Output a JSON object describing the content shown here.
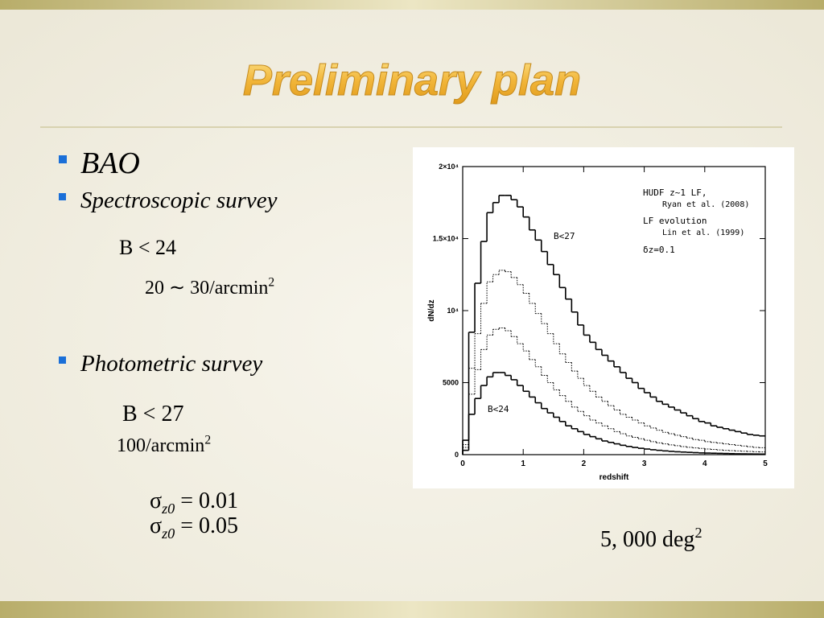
{
  "title": "Preliminary plan",
  "bullets": [
    "BAO",
    "Spectroscopic survey",
    "Photometric survey"
  ],
  "equations": [
    {
      "pre": "B < 24"
    },
    {
      "pre": "20 ∼ 30/arcmin",
      "sup": "2"
    },
    {
      "pre": "B < 27"
    },
    {
      "pre": "100/arcmin",
      "sup": "2"
    },
    {
      "pre": "σ",
      "sub": "z0",
      "post": " = 0.01"
    },
    {
      "pre": "σ",
      "sub": "z0",
      "post": " = 0.05"
    },
    {
      "pre": "5, 000 deg",
      "sup": "2"
    }
  ],
  "chart_data": {
    "type": "histogram",
    "x_label": "redshift",
    "y_label": "dN/dz",
    "annotations": [
      "HUDF z~1 LF,",
      "Ryan et al. (2008)",
      "LF evolution",
      "Lin et al. (1999)",
      "δz=0.1",
      "B<27",
      "B<24"
    ],
    "bins": [
      0,
      0.1,
      0.2,
      0.3,
      0.4,
      0.5,
      0.6,
      0.7,
      0.8,
      0.9,
      1,
      1.1,
      1.2,
      1.3,
      1.4,
      1.5,
      1.6,
      1.7,
      1.8,
      1.9,
      2,
      2.1,
      2.2,
      2.3,
      2.4,
      2.5,
      2.6,
      2.7,
      2.8,
      2.9,
      3,
      3.1,
      3.2,
      3.3,
      3.4,
      3.5,
      3.6,
      3.7,
      3.8,
      3.9,
      4,
      4.1,
      4.2,
      4.3,
      4.4,
      4.5,
      4.6,
      4.7,
      4.8,
      4.9,
      5
    ],
    "series": [
      {
        "color": "#000000",
        "line_style": "solid",
        "values": [
          1000,
          8500,
          11900,
          14800,
          16800,
          17500,
          18000,
          18000,
          17700,
          17200,
          16500,
          15600,
          14900,
          14100,
          13200,
          12500,
          11600,
          10800,
          9900,
          9000,
          8300,
          7800,
          7300,
          6900,
          6500,
          6100,
          5700,
          5300,
          5000,
          4600,
          4300,
          4000,
          3700,
          3500,
          3300,
          3100,
          2900,
          2700,
          2500,
          2300,
          2200,
          2000,
          1900,
          1800,
          1700,
          1600,
          1500,
          1400,
          1350,
          1300
        ]
      },
      {
        "color": "#000000",
        "line_style": "dotted",
        "values": [
          700,
          6000,
          8400,
          10500,
          12000,
          12500,
          12800,
          12700,
          12300,
          11800,
          11200,
          10500,
          9800,
          9100,
          8400,
          7700,
          7000,
          6400,
          5800,
          5300,
          4800,
          4400,
          4000,
          3700,
          3400,
          3100,
          2800,
          2600,
          2400,
          2200,
          2000,
          1850,
          1700,
          1550,
          1450,
          1350,
          1250,
          1150,
          1050,
          1000,
          900,
          850,
          800,
          750,
          700,
          650,
          600,
          550,
          500,
          480
        ]
      },
      {
        "color": "#000000",
        "line_style": "dotted",
        "values": [
          500,
          4200,
          5900,
          7300,
          8300,
          8700,
          8800,
          8600,
          8200,
          7700,
          7200,
          6600,
          6100,
          5500,
          5000,
          4500,
          4100,
          3700,
          3300,
          3000,
          2700,
          2400,
          2200,
          2000,
          1800,
          1600,
          1450,
          1300,
          1200,
          1100,
          1000,
          900,
          820,
          750,
          680,
          620,
          560,
          510,
          470,
          430,
          390,
          360,
          330,
          300,
          280,
          260,
          240,
          220,
          200,
          190
        ]
      },
      {
        "color": "#000000",
        "line_style": "solid",
        "values": [
          300,
          2800,
          3900,
          4800,
          5400,
          5700,
          5700,
          5500,
          5200,
          4800,
          4400,
          4000,
          3600,
          3200,
          2900,
          2600,
          2300,
          2000,
          1800,
          1600,
          1400,
          1250,
          1100,
          950,
          850,
          750,
          650,
          570,
          500,
          440,
          390,
          340,
          300,
          260,
          230,
          200,
          180,
          160,
          140,
          120,
          110,
          100,
          90,
          80,
          70,
          60,
          55,
          50,
          45,
          40
        ]
      }
    ],
    "xlim": [
      0,
      5
    ],
    "xticks": [
      0,
      1,
      2,
      3,
      4,
      5
    ],
    "ylim": [
      0,
      20000
    ],
    "yticks": [
      0,
      5000,
      {
        "value": 10000,
        "label": "10⁴"
      },
      {
        "value": 15000,
        "label": "1.5×10⁴"
      },
      {
        "value": 20000,
        "label": "2×10⁴"
      }
    ]
  }
}
